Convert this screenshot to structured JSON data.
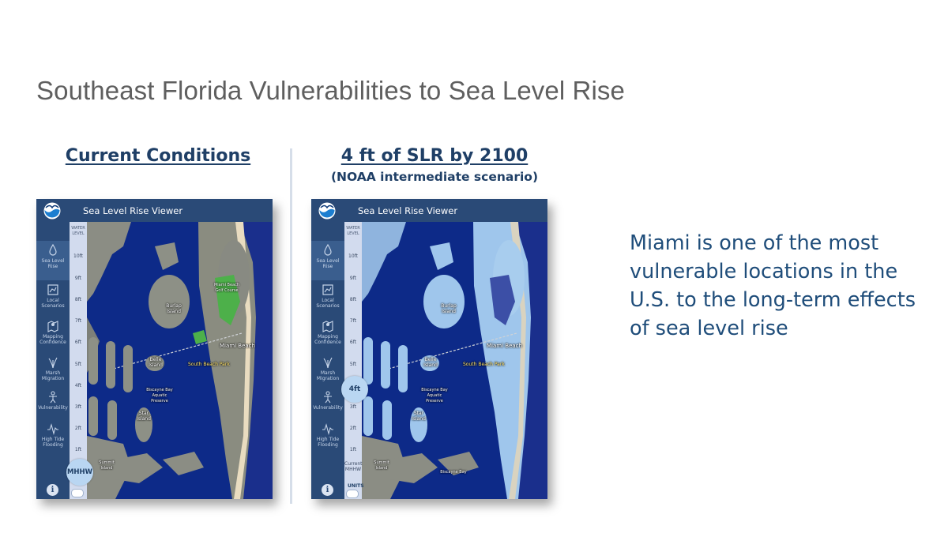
{
  "slide": {
    "title": "Southeast Florida Vulnerabilities to Sea Level Rise",
    "caption": "Miami is one of the most vulnerable locations in the U.S. to the long-term effects of sea level rise"
  },
  "left_panel": {
    "heading": "Current Conditions",
    "viewer": {
      "title": "Sea Level Rise Viewer",
      "slider_value": "MHHW"
    }
  },
  "right_panel": {
    "heading": "4 ft of SLR by 2100",
    "subheading": "(NOAA intermediate scenario)",
    "viewer": {
      "title": "Sea Level Rise Viewer",
      "slider_value": "4ft",
      "current_label": "Current MHHW",
      "units_label": "UNITS"
    }
  },
  "sidebar": {
    "items": [
      {
        "label": "Sea Level Rise",
        "icon": "water-drop-icon"
      },
      {
        "label": "Local Scenarios",
        "icon": "local-scenarios-icon"
      },
      {
        "label": "Mapping Confidence",
        "icon": "map-pin-icon"
      },
      {
        "label": "Marsh Migration",
        "icon": "marsh-plant-icon"
      },
      {
        "label": "Vulnerability",
        "icon": "person-icon"
      },
      {
        "label": "High Tide Flooding",
        "icon": "tide-wave-icon"
      }
    ],
    "info": "i"
  },
  "slider": {
    "header": "WATER LEVEL",
    "ticks": [
      "10ft",
      "9ft",
      "8ft",
      "7ft",
      "6ft",
      "5ft",
      "4ft",
      "3ft",
      "2ft",
      "1ft"
    ]
  },
  "map_labels": {
    "miami_beach": "Miami Beach",
    "south_beach": "South Beach Park",
    "belle_isle": "Belle Island",
    "star_island": "Star Island",
    "biscayne_bay": "Biscayne Bay Aquatic Preserve",
    "summit_island": "Summit Island",
    "biscayne_bay_short": "Biscayne Bay",
    "burlap_island": "Burlap Island",
    "golf_course": "Miami Beach Golf Course"
  },
  "colors": {
    "header_bg": "#2a4a77",
    "heading_text": "#1f3f66",
    "caption_text": "#1f4d7a",
    "water": "#0d2a88",
    "flood": "#9fc6ec"
  }
}
